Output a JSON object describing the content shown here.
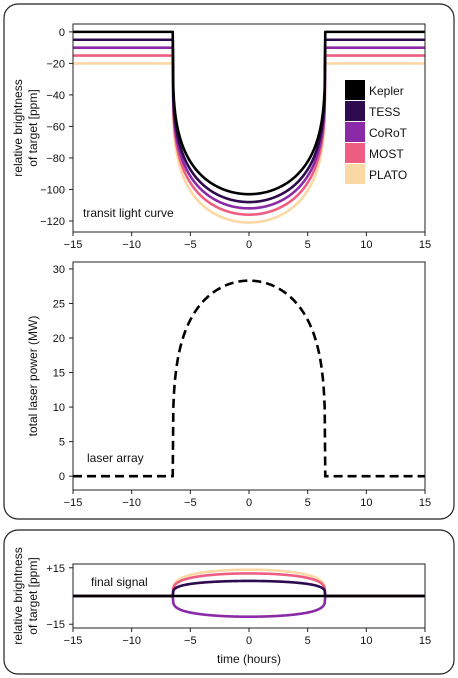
{
  "colors": {
    "Kepler": "#000000",
    "TESS": "#2e0b4e",
    "CoRoT": "#8a2aa6",
    "MOST": "#ee5e82",
    "PLATO": "#fcd9a4"
  },
  "chart_data": [
    {
      "type": "line",
      "title": "",
      "annotation": "transit light curve",
      "xlabel": "",
      "ylabel_lines": [
        "relative brightness",
        "of target [ppm]"
      ],
      "xlim": [
        -15,
        15
      ],
      "ylim": [
        -127,
        5
      ],
      "xticks": [
        -15,
        -10,
        -5,
        0,
        5,
        10,
        15
      ],
      "xtick_labels": [
        "−15",
        "−10",
        "−5",
        "0",
        "5",
        "10",
        "15"
      ],
      "yticks": [
        0,
        -20,
        -40,
        -60,
        -80,
        -100,
        -120
      ],
      "ytick_labels": [
        "0",
        "−20",
        "−40",
        "−60",
        "−80",
        "−100",
        "−120"
      ],
      "grid": false,
      "legend_position": "right",
      "transit_ingress": -6.5,
      "transit_egress": 6.5,
      "series": [
        {
          "name": "Kepler",
          "baseline": 0,
          "depth_at_center": -103
        },
        {
          "name": "TESS",
          "baseline": -5,
          "depth_at_center": -108
        },
        {
          "name": "CoRoT",
          "baseline": -10,
          "depth_at_center": -112
        },
        {
          "name": "MOST",
          "baseline": -15,
          "depth_at_center": -116
        },
        {
          "name": "PLATO",
          "baseline": -20,
          "depth_at_center": -121
        }
      ]
    },
    {
      "type": "line",
      "title": "",
      "annotation": "laser array",
      "xlabel": "",
      "ylabel": "total laser power (MW)",
      "xlim": [
        -15,
        15
      ],
      "ylim": [
        -2,
        31
      ],
      "xticks": [
        -15,
        -10,
        -5,
        0,
        5,
        10,
        15
      ],
      "xtick_labels": [
        "−15",
        "−10",
        "−5",
        "0",
        "5",
        "10",
        "15"
      ],
      "yticks": [
        0,
        5,
        10,
        15,
        20,
        25,
        30
      ],
      "ytick_labels": [
        "0",
        "5",
        "10",
        "15",
        "20",
        "25",
        "30"
      ],
      "grid": false,
      "line_style": "dashed",
      "transit_ingress": -6.5,
      "transit_egress": 6.5,
      "off_level": 0,
      "peak": 28.3
    },
    {
      "type": "line",
      "title": "",
      "annotation": "final signal",
      "xlabel": "time (hours)",
      "ylabel_lines": [
        "relative brightness",
        "of target [ppm]"
      ],
      "xlim": [
        -15,
        15
      ],
      "ylim": [
        -17,
        17
      ],
      "xticks": [
        -15,
        -10,
        -5,
        0,
        5,
        10,
        15
      ],
      "xtick_labels": [
        "−15",
        "−10",
        "−5",
        "0",
        "5",
        "10",
        "15"
      ],
      "yticks": [
        15,
        -15
      ],
      "ytick_labels": [
        "+15",
        "−15"
      ],
      "grid": false,
      "transit_ingress": -6.5,
      "transit_egress": 6.5,
      "series": [
        {
          "name": "Kepler",
          "baseline": 0,
          "residual_at_center": 0
        },
        {
          "name": "TESS",
          "baseline": 0,
          "residual_at_center": 8
        },
        {
          "name": "CoRoT",
          "baseline": 0,
          "residual_at_center": -11
        },
        {
          "name": "MOST",
          "baseline": 0,
          "residual_at_center": 12
        },
        {
          "name": "PLATO",
          "baseline": 0,
          "residual_at_center": 14
        }
      ]
    }
  ]
}
